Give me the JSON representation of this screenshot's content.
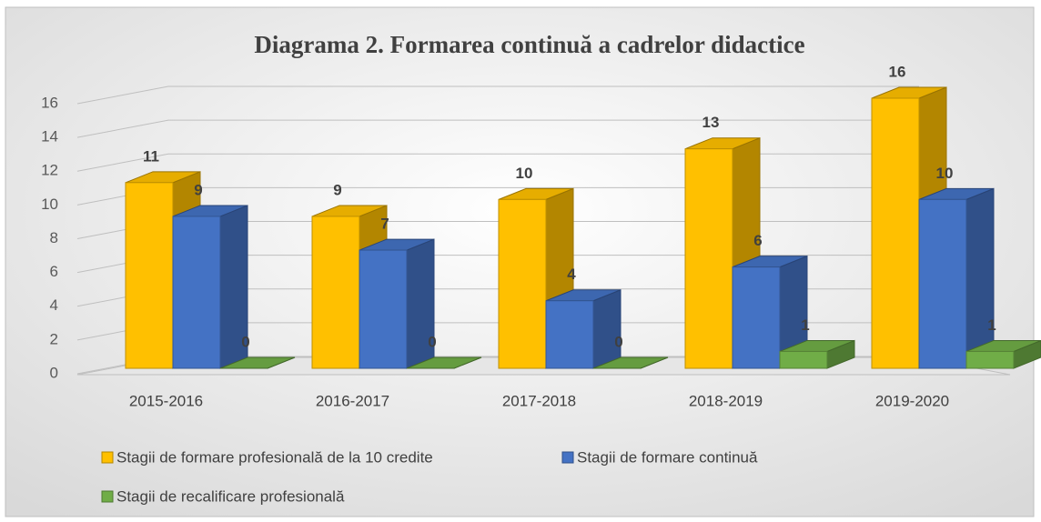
{
  "chart_data": {
    "type": "bar",
    "title": "Diagrama 2. Formarea continuă a cadrelor didactice",
    "categories": [
      "2015-2016",
      "2016-2017",
      "2017-2018",
      "2018-2019",
      "2019-2020"
    ],
    "series": [
      {
        "name": "Stagii de formare profesională de la 10 credite",
        "color": "#FFC000",
        "values": [
          11,
          9,
          10,
          13,
          16
        ]
      },
      {
        "name": "Stagii de formare continuă",
        "color": "#4472C4",
        "values": [
          9,
          7,
          4,
          6,
          10
        ]
      },
      {
        "name": "Stagii de recalificare profesională",
        "color": "#70AD47",
        "values": [
          0,
          0,
          0,
          1,
          1
        ]
      }
    ],
    "ylim": [
      0,
      16
    ],
    "yticks": [
      0,
      2,
      4,
      6,
      8,
      10,
      12,
      14,
      16
    ],
    "grid": true,
    "legend": "bottom"
  }
}
